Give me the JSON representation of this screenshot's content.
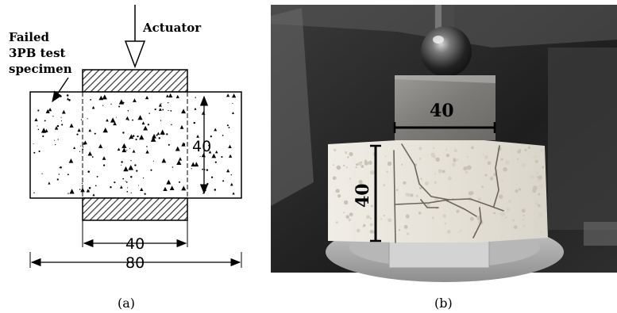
{
  "panel_a": {
    "labels": {
      "actuator": "Actuator",
      "failed_line1": "Failed",
      "failed_line2": "3PB test",
      "failed_line3": "specimen"
    },
    "dimensions": {
      "height": "40",
      "support_width": "40",
      "total_length": "80"
    },
    "caption": "(a)"
  },
  "panel_b": {
    "dimensions": {
      "loading_block_width": "40",
      "specimen_height": "40"
    },
    "caption": "(b)"
  },
  "colors": {
    "ink": "#000000",
    "hatch_fill": "#555555",
    "photo_background": "#2c2c2c",
    "specimen": "#e9e5dc"
  }
}
